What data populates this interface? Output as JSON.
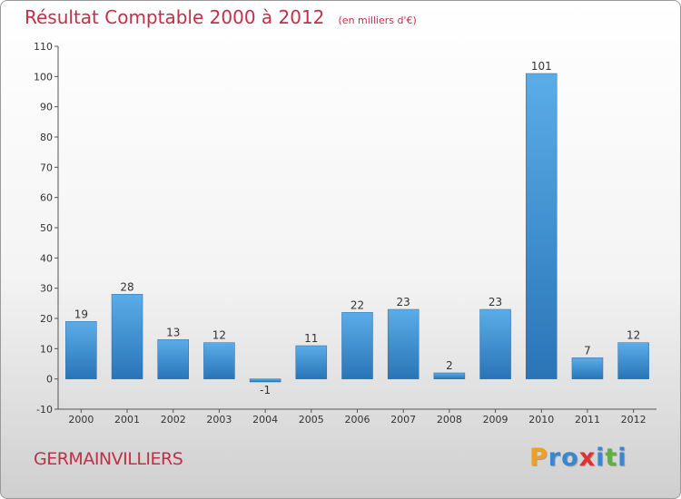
{
  "chart_data": {
    "type": "bar",
    "title": "Résultat Comptable 2000 à 2012",
    "subtitle": "(en milliers d'€)",
    "categories": [
      "2000",
      "2001",
      "2002",
      "2003",
      "2004",
      "2005",
      "2006",
      "2007",
      "2008",
      "2009",
      "2010",
      "2011",
      "2012"
    ],
    "values": [
      19,
      28,
      13,
      12,
      -1,
      11,
      22,
      23,
      2,
      23,
      101,
      7,
      12
    ],
    "data_labels": [
      "19",
      "28",
      "13",
      "12",
      "-1",
      "11",
      "22",
      "23",
      "2",
      "23",
      "101",
      "7",
      "12"
    ],
    "ylim": [
      -10,
      110
    ],
    "yticks": [
      "-10",
      "0",
      "10",
      "20",
      "30",
      "40",
      "50",
      "60",
      "70",
      "80",
      "90",
      "100",
      "110"
    ],
    "grid": false,
    "xlabel": "",
    "ylabel": "",
    "bar_color": "#3f8fd6"
  },
  "place": "GERMAINVILLIERS",
  "logo": {
    "letters": [
      "P",
      "r",
      "o",
      "x",
      "i",
      "t",
      "i"
    ],
    "colors": [
      "#f0a020",
      "#3a86d0",
      "#3a86d0",
      "#e03030",
      "#3a86d0",
      "#60b040",
      "#3a86d0"
    ]
  }
}
